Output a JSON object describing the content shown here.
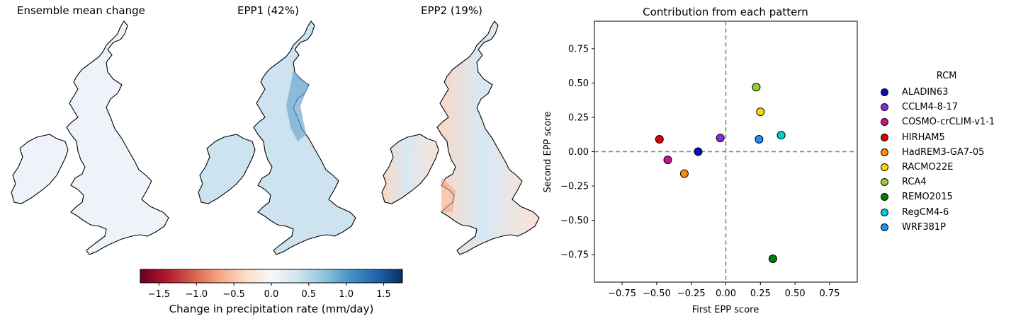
{
  "maps": {
    "titles": [
      "Ensemble mean change",
      "EPP1 (42%)",
      "EPP2 (19%)"
    ]
  },
  "colorbar": {
    "label": "Change in precipitation rate (mm/day)",
    "ticks": [
      "−1.5",
      "−1.0",
      "−0.5",
      "0.0",
      "0.5",
      "1.0",
      "1.5"
    ],
    "range": [
      -1.75,
      1.75
    ],
    "colormap": "RdBu"
  },
  "chart_data": {
    "type": "scatter",
    "title": "Contribution from each pattern",
    "xlabel": "First EPP score",
    "ylabel": "Second EPP score",
    "xlim": [
      -0.95,
      0.95
    ],
    "ylim": [
      -0.95,
      0.95
    ],
    "xticks": [
      "−0.75",
      "−0.50",
      "−0.25",
      "0.00",
      "0.25",
      "0.50",
      "0.75"
    ],
    "yticks": [
      "0.75",
      "0.50",
      "0.25",
      "0.00",
      "−0.25",
      "−0.50",
      "−0.75"
    ],
    "legend_title": "RCM",
    "legend_position": "right",
    "reference_lines": "dashed grey lines at x=0 and y=0",
    "points": [
      {
        "name": "ALADIN63",
        "x": -0.2,
        "y": 0.0,
        "color": "#0b0bc6"
      },
      {
        "name": "CCLM4-8-17",
        "x": -0.04,
        "y": 0.1,
        "color": "#8a2be2"
      },
      {
        "name": "COSMO-crCLIM-v1-1",
        "x": -0.42,
        "y": -0.06,
        "color": "#c71585"
      },
      {
        "name": "HIRHAM5",
        "x": -0.48,
        "y": 0.09,
        "color": "#e00000"
      },
      {
        "name": "HadREM3-GA7-05",
        "x": -0.3,
        "y": -0.16,
        "color": "#ff8c00"
      },
      {
        "name": "RACMO22E",
        "x": 0.25,
        "y": 0.29,
        "color": "#ffd700"
      },
      {
        "name": "RCA4",
        "x": 0.22,
        "y": 0.47,
        "color": "#9acd32"
      },
      {
        "name": "REMO2015",
        "x": 0.34,
        "y": -0.78,
        "color": "#008000"
      },
      {
        "name": "RegCM4-6",
        "x": 0.4,
        "y": 0.12,
        "color": "#00ced1"
      },
      {
        "name": "WRF381P",
        "x": 0.24,
        "y": 0.09,
        "color": "#1e90ff"
      }
    ]
  }
}
